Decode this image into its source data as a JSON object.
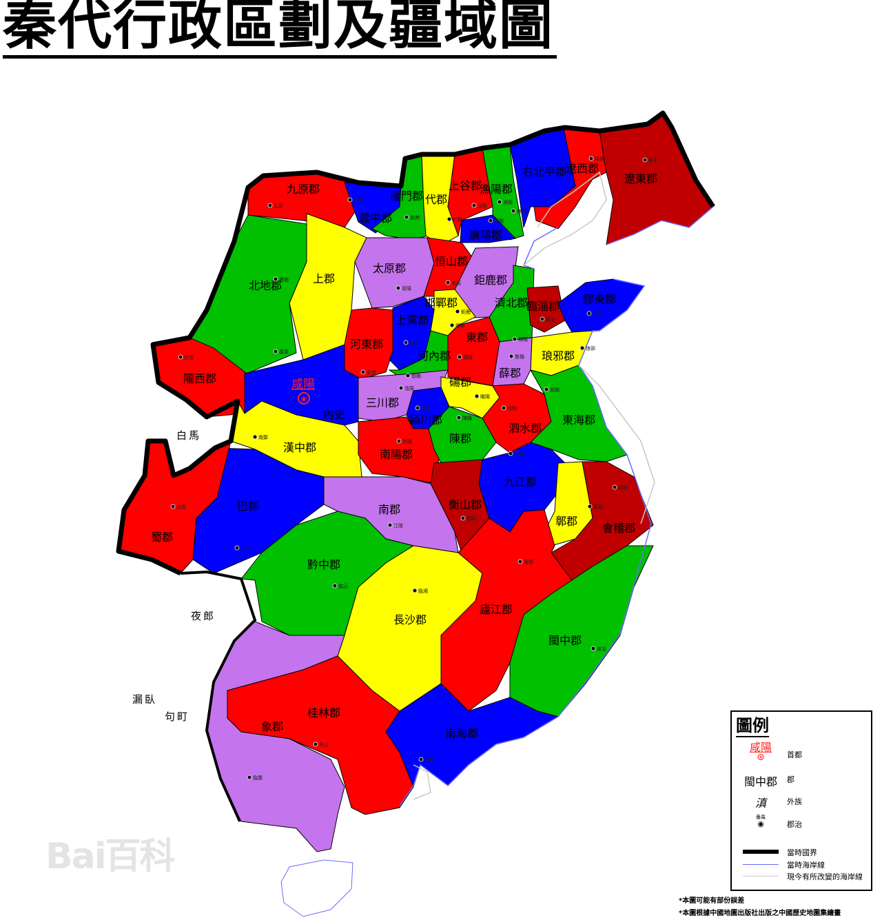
{
  "title": "秦代行政區劃及疆域圖",
  "capital": {
    "name": "咸陽"
  },
  "colors": {
    "red": "#ff0000",
    "blue": "#0000ff",
    "green": "#00c000",
    "yellow": "#ffff00",
    "purple": "#c474ec",
    "darkred": "#c00000",
    "border": "#000000",
    "coast": "#6a6aff",
    "modern_coast": "#c8c8c8"
  },
  "commanderies": [
    {
      "name": "九原郡",
      "color": "red"
    },
    {
      "name": "雲中郡",
      "color": "blue"
    },
    {
      "name": "雁門郡",
      "color": "green"
    },
    {
      "name": "代郡",
      "color": "yellow"
    },
    {
      "name": "上谷郡",
      "color": "red"
    },
    {
      "name": "漁陽郡",
      "color": "green"
    },
    {
      "name": "右北平郡",
      "color": "blue"
    },
    {
      "name": "遼西郡",
      "color": "red"
    },
    {
      "name": "遼東郡",
      "color": "darkred"
    },
    {
      "name": "廣陽郡",
      "color": "blue"
    },
    {
      "name": "北地郡",
      "color": "green"
    },
    {
      "name": "上郡",
      "color": "yellow"
    },
    {
      "name": "太原郡",
      "color": "purple"
    },
    {
      "name": "恒山郡",
      "color": "red"
    },
    {
      "name": "鉅鹿郡",
      "color": "purple"
    },
    {
      "name": "濟北郡",
      "color": "green"
    },
    {
      "name": "臨淄郡",
      "color": "darkred"
    },
    {
      "name": "膠東郡",
      "color": "blue"
    },
    {
      "name": "琅邪郡",
      "color": "yellow"
    },
    {
      "name": "隴西郡",
      "color": "red"
    },
    {
      "name": "內史",
      "color": "blue"
    },
    {
      "name": "河東郡",
      "color": "red"
    },
    {
      "name": "上黨郡",
      "color": "blue"
    },
    {
      "name": "邯鄲郡",
      "color": "yellow"
    },
    {
      "name": "河內郡",
      "color": "green"
    },
    {
      "name": "東郡",
      "color": "red"
    },
    {
      "name": "薛郡",
      "color": "purple"
    },
    {
      "name": "三川郡",
      "color": "purple"
    },
    {
      "name": "潁川郡",
      "color": "blue"
    },
    {
      "name": "碭郡",
      "color": "yellow"
    },
    {
      "name": "泗水郡",
      "color": "red"
    },
    {
      "name": "東海郡",
      "color": "green"
    },
    {
      "name": "漢中郡",
      "color": "yellow"
    },
    {
      "name": "南陽郡",
      "color": "red"
    },
    {
      "name": "陳郡",
      "color": "green"
    },
    {
      "name": "九江郡",
      "color": "blue"
    },
    {
      "name": "衡山郡",
      "color": "darkred"
    },
    {
      "name": "鄣郡",
      "color": "yellow"
    },
    {
      "name": "會稽郡",
      "color": "darkred"
    },
    {
      "name": "巴郡",
      "color": "blue"
    },
    {
      "name": "蜀郡",
      "color": "red"
    },
    {
      "name": "南郡",
      "color": "purple"
    },
    {
      "name": "黔中郡",
      "color": "green"
    },
    {
      "name": "長沙郡",
      "color": "yellow"
    },
    {
      "name": "廬江郡",
      "color": "red"
    },
    {
      "name": "閩中郡",
      "color": "green"
    },
    {
      "name": "象郡",
      "color": "purple"
    },
    {
      "name": "桂林郡",
      "color": "red"
    },
    {
      "name": "南海郡",
      "color": "blue"
    }
  ],
  "seats": [
    "九原",
    "雲中",
    "善無",
    "代縣",
    "沮陽",
    "漁陽",
    "無終",
    "薊縣",
    "膚施",
    "晉陽",
    "東垣",
    "鉅鹿",
    "邯鄲",
    "長子",
    "懷縣",
    "洛陽",
    "陽翟",
    "濮陽",
    "睢陽",
    "魯縣",
    "博陽",
    "臨淄",
    "即墨",
    "琅邪",
    "郯縣",
    "相縣",
    "陳縣",
    "宛縣",
    "壽春",
    "狄道",
    "義渠",
    "安邑",
    "南鄭",
    "成都",
    "江州",
    "江陵",
    "臨沅",
    "臨湘",
    "邾縣",
    "番陽",
    "鄣縣",
    "吳縣",
    "東冶",
    "番禺",
    "布山",
    "臨塵",
    "陽樂",
    "襄平"
  ],
  "foreign_peoples": [
    "白馬",
    "夜郎",
    "漏臥",
    "句町"
  ],
  "legend": {
    "title": "圖例",
    "items": [
      {
        "symbol": "咸陽",
        "label": "首都"
      },
      {
        "symbol": "閩中郡",
        "label": "郡"
      },
      {
        "symbol": "滇",
        "label": "外族"
      },
      {
        "symbol": "番禺",
        "label": "郡治"
      },
      {
        "symbol": "",
        "label": "當時國界"
      },
      {
        "symbol": "",
        "label": "當時海岸線"
      },
      {
        "symbol": "",
        "label": "現今有所改變的海岸線"
      }
    ]
  },
  "notes": [
    "*本圖可能有部份誤差",
    "*本圖根據中國地圖出版社出版之中國歷史地圖集繪畫"
  ],
  "watermark": "Bai百科"
}
